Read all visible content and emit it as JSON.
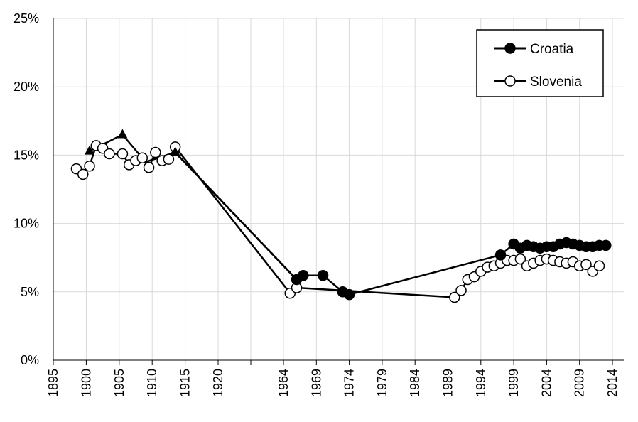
{
  "chart_data": {
    "type": "line",
    "title": "",
    "xlabel": "",
    "ylabel": "",
    "ylim": [
      0,
      25
    ],
    "y_tick_labels": [
      "0%",
      "5%",
      "10%",
      "15%",
      "20%",
      "25%"
    ],
    "x_tick_labels": [
      "1895",
      "1900",
      "1905",
      "1910",
      "1915",
      "1920",
      "1964",
      "1969",
      "1974",
      "1979",
      "1984",
      "1989",
      "1994",
      "1999",
      "2004",
      "2009",
      "2014"
    ],
    "x_axis_note": "broken time axis: 1895–1920 then 1964–2014",
    "grid": "vertical and horizontal light gray gridlines",
    "legend": {
      "position": "top-right",
      "entries": [
        {
          "label": "Croatia",
          "marker": "filled-circle"
        },
        {
          "label": "Slovenia",
          "marker": "open-circle"
        }
      ]
    },
    "series": [
      {
        "name": "Croatia",
        "color": "#000000",
        "marker": "filled-circle",
        "points": [
          {
            "x": 1900.5,
            "y": 15.3,
            "m": "triangle"
          },
          {
            "x": 1905.5,
            "y": 16.5,
            "m": "triangle"
          },
          {
            "x": 1909.0,
            "y": 14.5,
            "m": "none"
          },
          {
            "x": 1913.5,
            "y": 15.2,
            "m": "triangle"
          },
          {
            "x": 1966,
            "y": 5.9
          },
          {
            "x": 1967,
            "y": 6.2
          },
          {
            "x": 1970,
            "y": 6.2
          },
          {
            "x": 1973,
            "y": 5.0
          },
          {
            "x": 1974,
            "y": 4.8
          },
          {
            "x": 1997,
            "y": 7.7
          },
          {
            "x": 1999,
            "y": 8.5
          },
          {
            "x": 2000,
            "y": 8.2
          },
          {
            "x": 2001,
            "y": 8.4
          },
          {
            "x": 2002,
            "y": 8.3
          },
          {
            "x": 2003,
            "y": 8.2
          },
          {
            "x": 2004,
            "y": 8.3
          },
          {
            "x": 2005,
            "y": 8.3
          },
          {
            "x": 2006,
            "y": 8.5
          },
          {
            "x": 2007,
            "y": 8.6
          },
          {
            "x": 2008,
            "y": 8.5
          },
          {
            "x": 2009,
            "y": 8.4
          },
          {
            "x": 2010,
            "y": 8.3
          },
          {
            "x": 2011,
            "y": 8.3
          },
          {
            "x": 2012,
            "y": 8.4
          },
          {
            "x": 2013,
            "y": 8.4
          }
        ]
      },
      {
        "name": "Slovenia",
        "color": "#000000",
        "marker": "open-circle",
        "points": [
          {
            "x": 1898.5,
            "y": 14.0
          },
          {
            "x": 1899.5,
            "y": 13.6
          },
          {
            "x": 1900.5,
            "y": 14.2
          },
          {
            "x": 1901.5,
            "y": 15.7
          },
          {
            "x": 1902.5,
            "y": 15.5
          },
          {
            "x": 1903.5,
            "y": 15.1
          },
          {
            "x": 1905.5,
            "y": 15.1
          },
          {
            "x": 1906.5,
            "y": 14.3
          },
          {
            "x": 1907.5,
            "y": 14.6
          },
          {
            "x": 1908.5,
            "y": 14.8
          },
          {
            "x": 1909.5,
            "y": 14.1
          },
          {
            "x": 1910.5,
            "y": 15.2
          },
          {
            "x": 1911.5,
            "y": 14.6
          },
          {
            "x": 1912.5,
            "y": 14.7
          },
          {
            "x": 1913.5,
            "y": 15.6
          },
          {
            "x": 1965,
            "y": 4.9
          },
          {
            "x": 1966,
            "y": 5.3
          },
          {
            "x": 1990,
            "y": 4.6
          },
          {
            "x": 1991,
            "y": 5.1
          },
          {
            "x": 1992,
            "y": 5.9
          },
          {
            "x": 1993,
            "y": 6.1
          },
          {
            "x": 1994,
            "y": 6.5
          },
          {
            "x": 1995,
            "y": 6.8
          },
          {
            "x": 1996,
            "y": 6.9
          },
          {
            "x": 1997,
            "y": 7.1
          },
          {
            "x": 1998,
            "y": 7.3
          },
          {
            "x": 1999,
            "y": 7.3
          },
          {
            "x": 2000,
            "y": 7.4
          },
          {
            "x": 2001,
            "y": 6.9
          },
          {
            "x": 2002,
            "y": 7.1
          },
          {
            "x": 2003,
            "y": 7.3
          },
          {
            "x": 2004,
            "y": 7.4
          },
          {
            "x": 2005,
            "y": 7.3
          },
          {
            "x": 2006,
            "y": 7.2
          },
          {
            "x": 2007,
            "y": 7.1
          },
          {
            "x": 2008,
            "y": 7.2
          },
          {
            "x": 2009,
            "y": 6.9
          },
          {
            "x": 2010,
            "y": 7.0
          },
          {
            "x": 2011,
            "y": 6.5
          },
          {
            "x": 2012,
            "y": 6.9
          }
        ]
      }
    ],
    "connector": {
      "style": "dotted",
      "from": {
        "x": 1913.5,
        "y": 15.2
      },
      "to": {
        "x": 1966,
        "y": 5.9
      }
    }
  }
}
